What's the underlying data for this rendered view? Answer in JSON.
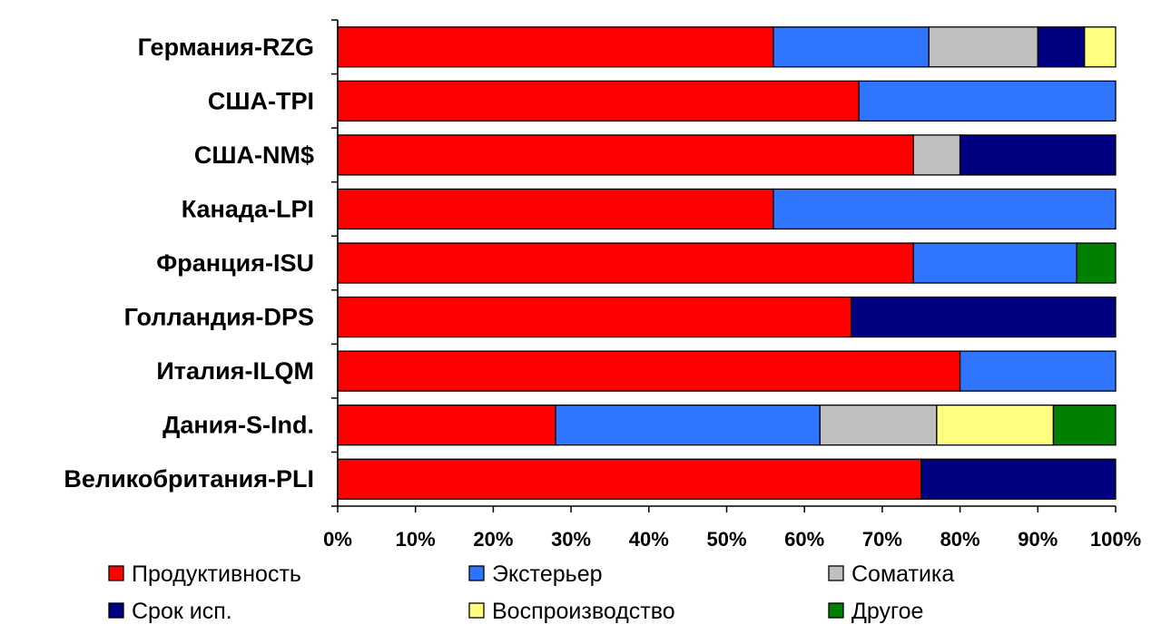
{
  "chart_data": {
    "type": "bar",
    "orientation": "horizontal",
    "stacked": "percent",
    "categories": [
      "Германия-RZG",
      "США-TPI",
      "США-NM$",
      "Канада-LPI",
      "Франция-ISU",
      "Голландия-DPS",
      "Италия-ILQM",
      "Дания-S-Ind.",
      "Великобритания-PLI"
    ],
    "series": [
      {
        "name": "Продуктивность",
        "color": "#ff0000",
        "values": [
          56,
          67,
          74,
          56,
          74,
          66,
          80,
          28,
          75
        ]
      },
      {
        "name": "Экстерьер",
        "color": "#3075ff",
        "values": [
          20,
          33,
          0,
          44,
          21,
          0,
          20,
          34,
          0
        ]
      },
      {
        "name": "Соматика",
        "color": "#c0c0c0",
        "values": [
          14,
          0,
          6,
          0,
          0,
          0,
          0,
          15,
          0
        ]
      },
      {
        "name": "Срок исп.",
        "color": "#000080",
        "values": [
          6,
          0,
          20,
          0,
          0,
          34,
          0,
          0,
          25
        ]
      },
      {
        "name": "Воспроизводство",
        "color": "#ffff80",
        "values": [
          4,
          0,
          0,
          0,
          0,
          0,
          0,
          15,
          0
        ]
      },
      {
        "name": "Другое",
        "color": "#008000",
        "values": [
          0,
          0,
          0,
          0,
          5,
          0,
          0,
          8,
          0
        ]
      }
    ],
    "x_ticks": [
      "0%",
      "10%",
      "20%",
      "30%",
      "40%",
      "50%",
      "60%",
      "70%",
      "80%",
      "90%",
      "100%"
    ],
    "xlim": [
      0,
      100
    ],
    "grid": false,
    "legend_position": "bottom"
  }
}
